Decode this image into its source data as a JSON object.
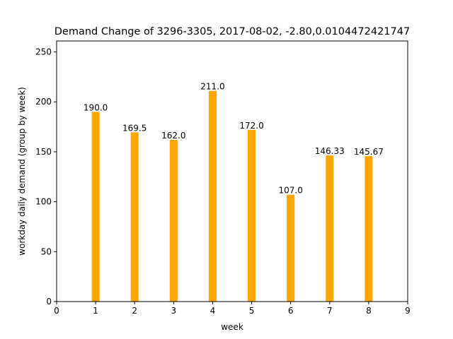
{
  "chart_data": {
    "type": "bar",
    "title": "Demand Change of 3296-3305, 2017-08-02, -2.80,0.0104472421747",
    "xlabel": "week",
    "ylabel": "workday daily demand (group by week)",
    "x": [
      1,
      2,
      3,
      4,
      5,
      6,
      7,
      8
    ],
    "values": [
      190.0,
      169.5,
      162.0,
      211.0,
      172.0,
      107.0,
      146.33,
      145.67
    ],
    "data_labels": [
      "190.0",
      "169.5",
      "162.0",
      "211.0",
      "172.0",
      "107.0",
      "146.33",
      "145.67"
    ],
    "xlim": [
      0,
      9
    ],
    "ylim": [
      0,
      261
    ],
    "xticks": [
      "0",
      "1",
      "2",
      "3",
      "4",
      "5",
      "6",
      "7",
      "8",
      "9"
    ],
    "yticks": [
      "0",
      "50",
      "100",
      "150",
      "200",
      "250"
    ],
    "bar_color": "#ffa500",
    "grid": false,
    "legend": "none"
  }
}
